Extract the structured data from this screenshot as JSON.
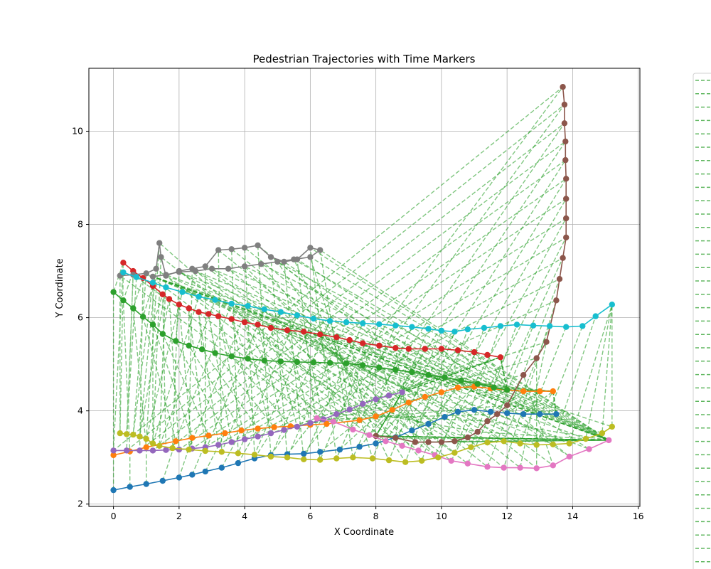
{
  "chart_data": {
    "type": "line",
    "title": "Pedestrian Trajectories with Time Markers",
    "xlabel": "X Coordinate",
    "ylabel": "Y Coordinate",
    "xlim": [
      -0.75,
      16.05
    ],
    "ylim": [
      1.95,
      11.35
    ],
    "xticks": [
      0,
      2,
      4,
      6,
      8,
      10,
      12,
      14,
      16
    ],
    "yticks": [
      2,
      4,
      6,
      8,
      10
    ],
    "grid": true,
    "legend": "right, partially cut off; entries are dashed green lines",
    "legend_entry_count": 37,
    "connector_style": {
      "color": "#2ca02c",
      "dash": "dashed",
      "opacity": 0.6
    },
    "series": [
      {
        "color": "#1f77b4",
        "points": [
          [
            0,
            2.3
          ],
          [
            0.5,
            2.37
          ],
          [
            1,
            2.43
          ],
          [
            1.5,
            2.5
          ],
          [
            2,
            2.57
          ],
          [
            2.4,
            2.63
          ],
          [
            2.8,
            2.7
          ],
          [
            3.3,
            2.78
          ],
          [
            3.8,
            2.88
          ],
          [
            4.3,
            2.98
          ],
          [
            4.8,
            3.05
          ],
          [
            5.3,
            3.07
          ],
          [
            5.8,
            3.08
          ],
          [
            6.3,
            3.12
          ],
          [
            6.9,
            3.17
          ],
          [
            7.5,
            3.23
          ],
          [
            8,
            3.3
          ],
          [
            8.6,
            3.43
          ],
          [
            9.1,
            3.58
          ],
          [
            9.6,
            3.72
          ],
          [
            10.1,
            3.87
          ],
          [
            10.5,
            3.98
          ],
          [
            11,
            4.02
          ],
          [
            11.5,
            3.98
          ],
          [
            12,
            3.95
          ],
          [
            12.5,
            3.93
          ],
          [
            13,
            3.93
          ],
          [
            13.5,
            3.93
          ]
        ]
      },
      {
        "color": "#ff7f0e",
        "points": [
          [
            0,
            3.05
          ],
          [
            0.5,
            3.13
          ],
          [
            1,
            3.22
          ],
          [
            1.9,
            3.35
          ],
          [
            2.4,
            3.42
          ],
          [
            2.9,
            3.47
          ],
          [
            3.4,
            3.52
          ],
          [
            3.9,
            3.58
          ],
          [
            4.4,
            3.62
          ],
          [
            4.9,
            3.65
          ],
          [
            5.4,
            3.67
          ],
          [
            6,
            3.7
          ],
          [
            6.5,
            3.72
          ],
          [
            7.5,
            3.8
          ],
          [
            8,
            3.88
          ],
          [
            8.5,
            4.02
          ],
          [
            9,
            4.18
          ],
          [
            9.5,
            4.3
          ],
          [
            10,
            4.4
          ],
          [
            10.5,
            4.5
          ],
          [
            11,
            4.52
          ],
          [
            11.5,
            4.48
          ],
          [
            12,
            4.45
          ],
          [
            12.5,
            4.42
          ],
          [
            13,
            4.42
          ],
          [
            13.4,
            4.42
          ]
        ]
      },
      {
        "color": "#2ca02c",
        "points": [
          [
            0,
            6.55
          ],
          [
            0.3,
            6.37
          ],
          [
            0.6,
            6.2
          ],
          [
            0.9,
            6.02
          ],
          [
            1.2,
            5.85
          ],
          [
            1.5,
            5.65
          ],
          [
            1.9,
            5.5
          ],
          [
            2.3,
            5.4
          ],
          [
            2.7,
            5.32
          ],
          [
            3.1,
            5.24
          ],
          [
            3.6,
            5.17
          ],
          [
            4.1,
            5.12
          ],
          [
            4.6,
            5.08
          ],
          [
            5.1,
            5.06
          ],
          [
            5.6,
            5.05
          ],
          [
            6.1,
            5.04
          ],
          [
            6.6,
            5.03
          ],
          [
            7.1,
            5.02
          ],
          [
            7.6,
            4.98
          ],
          [
            8.1,
            4.93
          ],
          [
            8.6,
            4.88
          ],
          [
            9.1,
            4.83
          ],
          [
            9.6,
            4.77
          ],
          [
            10.1,
            4.72
          ],
          [
            10.6,
            4.65
          ],
          [
            11.1,
            4.58
          ],
          [
            11.6,
            4.5
          ],
          [
            12,
            4.45
          ]
        ]
      },
      {
        "color": "#d62728",
        "points": [
          [
            0.3,
            7.18
          ],
          [
            0.6,
            7.0
          ],
          [
            0.9,
            6.85
          ],
          [
            1.2,
            6.68
          ],
          [
            1.5,
            6.5
          ],
          [
            1.7,
            6.4
          ],
          [
            2,
            6.28
          ],
          [
            2.3,
            6.2
          ],
          [
            2.6,
            6.12
          ],
          [
            2.9,
            6.08
          ],
          [
            3.2,
            6.03
          ],
          [
            3.6,
            5.97
          ],
          [
            4,
            5.9
          ],
          [
            4.4,
            5.85
          ],
          [
            4.8,
            5.78
          ],
          [
            5.3,
            5.73
          ],
          [
            5.8,
            5.7
          ],
          [
            6.3,
            5.64
          ],
          [
            6.8,
            5.58
          ],
          [
            7.2,
            5.52
          ],
          [
            7.6,
            5.45
          ],
          [
            8.1,
            5.4
          ],
          [
            8.6,
            5.35
          ],
          [
            9,
            5.33
          ],
          [
            9.5,
            5.33
          ],
          [
            10,
            5.33
          ],
          [
            10.5,
            5.3
          ],
          [
            11,
            5.26
          ],
          [
            11.4,
            5.2
          ],
          [
            11.8,
            5.15
          ]
        ]
      },
      {
        "color": "#9467bd",
        "points": [
          [
            0,
            3.15
          ],
          [
            0.4,
            3.15
          ],
          [
            0.8,
            3.15
          ],
          [
            1.2,
            3.15
          ],
          [
            1.6,
            3.16
          ],
          [
            2,
            3.17
          ],
          [
            2.4,
            3.19
          ],
          [
            2.8,
            3.22
          ],
          [
            3.2,
            3.27
          ],
          [
            3.6,
            3.33
          ],
          [
            4,
            3.39
          ],
          [
            4.4,
            3.45
          ],
          [
            4.8,
            3.52
          ],
          [
            5.2,
            3.59
          ],
          [
            5.6,
            3.66
          ],
          [
            6,
            3.74
          ],
          [
            6.4,
            3.82
          ],
          [
            6.8,
            3.93
          ],
          [
            7.2,
            4.03
          ],
          [
            7.6,
            4.15
          ],
          [
            8,
            4.25
          ],
          [
            8.4,
            4.33
          ],
          [
            8.8,
            4.4
          ]
        ]
      },
      {
        "color": "#8c564b",
        "points": [
          [
            13.7,
            10.95
          ],
          [
            13.75,
            10.57
          ],
          [
            13.75,
            10.17
          ],
          [
            13.78,
            9.78
          ],
          [
            13.78,
            9.38
          ],
          [
            13.8,
            8.98
          ],
          [
            13.8,
            8.55
          ],
          [
            13.8,
            8.13
          ],
          [
            13.8,
            7.72
          ],
          [
            13.7,
            7.28
          ],
          [
            13.6,
            6.83
          ],
          [
            13.5,
            6.37
          ],
          [
            13.2,
            5.48
          ],
          [
            12.9,
            5.13
          ],
          [
            12.5,
            4.77
          ],
          [
            12,
            4.12
          ],
          [
            11.7,
            3.93
          ],
          [
            11.4,
            3.78
          ],
          [
            11.1,
            3.55
          ],
          [
            10.8,
            3.43
          ],
          [
            10.4,
            3.35
          ],
          [
            10,
            3.33
          ],
          [
            9.6,
            3.33
          ],
          [
            9.2,
            3.33
          ],
          [
            8.6,
            3.42
          ],
          [
            8,
            3.46
          ]
        ]
      },
      {
        "color": "#e377c2",
        "points": [
          [
            6.2,
            3.84
          ],
          [
            6.7,
            3.77
          ],
          [
            7.3,
            3.6
          ],
          [
            7.8,
            3.48
          ],
          [
            8.3,
            3.35
          ],
          [
            8.8,
            3.25
          ],
          [
            9.3,
            3.15
          ],
          [
            9.8,
            3.05
          ],
          [
            10.3,
            2.93
          ],
          [
            10.8,
            2.87
          ],
          [
            11.4,
            2.8
          ],
          [
            11.9,
            2.78
          ],
          [
            12.4,
            2.78
          ],
          [
            12.9,
            2.77
          ],
          [
            13.4,
            2.83
          ],
          [
            13.9,
            3.02
          ],
          [
            14.5,
            3.18
          ],
          [
            15.1,
            3.37
          ]
        ]
      },
      {
        "color": "#7f7f7f",
        "points": [
          [
            0.2,
            6.9
          ],
          [
            0.6,
            6.92
          ],
          [
            1,
            6.95
          ],
          [
            1.3,
            7.05
          ],
          [
            1.4,
            7.6
          ],
          [
            1.45,
            7.3
          ],
          [
            1.6,
            6.9
          ],
          [
            2,
            7.0
          ],
          [
            2.4,
            7.05
          ],
          [
            2.8,
            7.1
          ],
          [
            3.2,
            7.45
          ],
          [
            3.6,
            7.47
          ],
          [
            4,
            7.5
          ],
          [
            4.4,
            7.55
          ],
          [
            4.8,
            7.3
          ],
          [
            5.2,
            7.2
          ],
          [
            5.6,
            7.25
          ],
          [
            6,
            7.5
          ],
          [
            6.3,
            7.45
          ],
          [
            6,
            7.3
          ],
          [
            5.5,
            7.25
          ],
          [
            5,
            7.2
          ],
          [
            4.5,
            7.15
          ],
          [
            4,
            7.1
          ],
          [
            3.5,
            7.05
          ],
          [
            3,
            7.05
          ],
          [
            2.5,
            7.0
          ],
          [
            2,
            6.98
          ],
          [
            1.6,
            6.92
          ],
          [
            1.2,
            6.88
          ]
        ]
      },
      {
        "color": "#bcbd22",
        "points": [
          [
            0.2,
            3.52
          ],
          [
            0.4,
            3.5
          ],
          [
            0.6,
            3.49
          ],
          [
            0.8,
            3.45
          ],
          [
            1,
            3.4
          ],
          [
            1.2,
            3.3
          ],
          [
            1.4,
            3.25
          ],
          [
            1.8,
            3.2
          ],
          [
            2.3,
            3.17
          ],
          [
            2.8,
            3.14
          ],
          [
            3.3,
            3.12
          ],
          [
            3.8,
            3.09
          ],
          [
            4.3,
            3.06
          ],
          [
            4.8,
            3.02
          ],
          [
            5.3,
            3.0
          ],
          [
            5.8,
            2.96
          ],
          [
            6.3,
            2.95
          ],
          [
            6.8,
            2.98
          ],
          [
            7.3,
            3.0
          ],
          [
            7.9,
            2.98
          ],
          [
            8.4,
            2.94
          ],
          [
            8.9,
            2.9
          ],
          [
            9.4,
            2.93
          ],
          [
            9.9,
            3.0
          ],
          [
            10.4,
            3.1
          ],
          [
            10.9,
            3.22
          ],
          [
            11.4,
            3.32
          ],
          [
            11.9,
            3.35
          ],
          [
            12.4,
            3.3
          ],
          [
            12.9,
            3.27
          ],
          [
            13.4,
            3.28
          ],
          [
            13.9,
            3.3
          ],
          [
            14.4,
            3.4
          ],
          [
            14.9,
            3.52
          ],
          [
            15.2,
            3.66
          ]
        ]
      },
      {
        "color": "#17becf",
        "points": [
          [
            0.3,
            6.97
          ],
          [
            0.7,
            6.87
          ],
          [
            1.2,
            6.75
          ],
          [
            1.6,
            6.65
          ],
          [
            2.1,
            6.55
          ],
          [
            2.6,
            6.45
          ],
          [
            3.1,
            6.38
          ],
          [
            3.6,
            6.3
          ],
          [
            4.1,
            6.25
          ],
          [
            4.6,
            6.18
          ],
          [
            5.1,
            6.12
          ],
          [
            5.6,
            6.05
          ],
          [
            6.1,
            5.98
          ],
          [
            6.6,
            5.93
          ],
          [
            7.1,
            5.9
          ],
          [
            7.6,
            5.88
          ],
          [
            8.1,
            5.86
          ],
          [
            8.6,
            5.83
          ],
          [
            9.1,
            5.8
          ],
          [
            9.6,
            5.76
          ],
          [
            10,
            5.72
          ],
          [
            10.4,
            5.7
          ],
          [
            10.8,
            5.75
          ],
          [
            11.3,
            5.78
          ],
          [
            11.8,
            5.82
          ],
          [
            12.3,
            5.85
          ],
          [
            12.8,
            5.83
          ],
          [
            13.3,
            5.82
          ],
          [
            13.8,
            5.8
          ],
          [
            14.3,
            5.82
          ],
          [
            14.7,
            6.03
          ],
          [
            15.2,
            6.28
          ]
        ]
      }
    ]
  }
}
